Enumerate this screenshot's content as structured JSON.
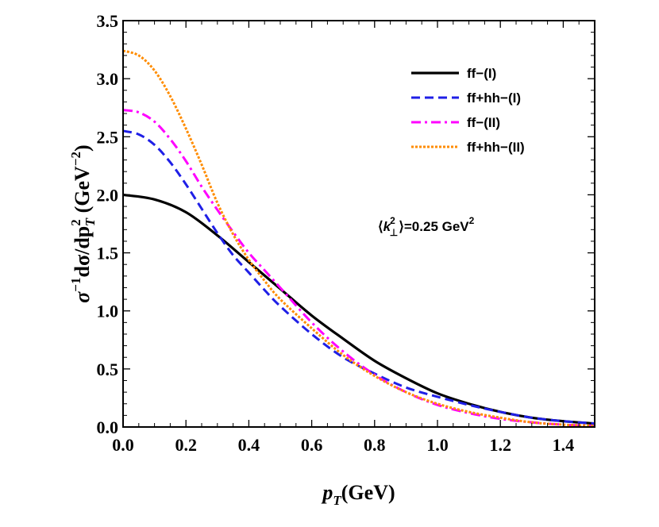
{
  "chart_data": {
    "type": "line",
    "xlabel_parts": {
      "main": "p",
      "sub": "T",
      "unit": "(GeV)"
    },
    "ylabel_parts": {
      "sigma": "σ",
      "sup1": "−1",
      "mid": "dσ/dp",
      "sup2": "2",
      "sub2": "T",
      "unit_open": " (GeV",
      "sup3": "−2",
      "unit_close": ")"
    },
    "xlim": [
      0,
      1.5
    ],
    "ylim": [
      0,
      3.5
    ],
    "x_ticks": [
      "0.0",
      "0.2",
      "0.4",
      "0.6",
      "0.8",
      "1.0",
      "1.2",
      "1.4"
    ],
    "y_ticks": [
      "0.0",
      "0.5",
      "1.0",
      "1.5",
      "2.0",
      "2.5",
      "3.0",
      "3.5"
    ],
    "grid": false,
    "legend_position": "top-right",
    "annotation": {
      "open": "⟨",
      "k": "k",
      "sup": "2",
      "sub": "⊥",
      "rest": "⟩=0.25 GeV",
      "unit_sup": "2"
    },
    "series": [
      {
        "name": "ff−(I)",
        "color": "#000000",
        "style": "solid",
        "x": [
          0,
          0.1,
          0.2,
          0.3,
          0.4,
          0.5,
          0.6,
          0.7,
          0.8,
          0.9,
          1.0,
          1.1,
          1.2,
          1.3,
          1.4,
          1.5
        ],
        "y": [
          2.0,
          1.96,
          1.85,
          1.65,
          1.42,
          1.19,
          0.96,
          0.76,
          0.57,
          0.42,
          0.29,
          0.2,
          0.13,
          0.08,
          0.05,
          0.03
        ]
      },
      {
        "name": "ff+hh−(I)",
        "color": "#1f1fe6",
        "style": "dashed",
        "x": [
          0,
          0.05,
          0.1,
          0.15,
          0.2,
          0.25,
          0.3,
          0.35,
          0.4,
          0.45,
          0.5,
          0.6,
          0.7,
          0.8,
          0.9,
          1.0,
          1.1,
          1.2,
          1.3,
          1.4,
          1.5
        ],
        "y": [
          2.55,
          2.52,
          2.43,
          2.28,
          2.09,
          1.88,
          1.67,
          1.48,
          1.33,
          1.18,
          1.04,
          0.8,
          0.6,
          0.46,
          0.34,
          0.26,
          0.19,
          0.13,
          0.08,
          0.05,
          0.03
        ]
      },
      {
        "name": "ff−(II)",
        "color": "#ff00ff",
        "style": "dashdot",
        "x": [
          0,
          0.05,
          0.1,
          0.15,
          0.2,
          0.25,
          0.3,
          0.35,
          0.4,
          0.45,
          0.5,
          0.6,
          0.7,
          0.8,
          0.9,
          1.0,
          1.1,
          1.2,
          1.3,
          1.4,
          1.5
        ],
        "y": [
          2.73,
          2.71,
          2.63,
          2.48,
          2.29,
          2.07,
          1.87,
          1.68,
          1.5,
          1.35,
          1.2,
          0.9,
          0.65,
          0.45,
          0.3,
          0.19,
          0.12,
          0.07,
          0.04,
          0.02,
          0.01
        ]
      },
      {
        "name": "ff+hh−(II)",
        "color": "#ff8c00",
        "style": "dotted",
        "x": [
          0,
          0.05,
          0.1,
          0.15,
          0.2,
          0.25,
          0.3,
          0.35,
          0.4,
          0.45,
          0.5,
          0.6,
          0.7,
          0.8,
          0.9,
          1.0,
          1.1,
          1.2,
          1.3,
          1.4,
          1.5
        ],
        "y": [
          3.24,
          3.2,
          3.07,
          2.85,
          2.57,
          2.26,
          1.93,
          1.66,
          1.44,
          1.26,
          1.1,
          0.85,
          0.62,
          0.44,
          0.3,
          0.2,
          0.13,
          0.08,
          0.04,
          0.02,
          0.01
        ]
      }
    ]
  }
}
